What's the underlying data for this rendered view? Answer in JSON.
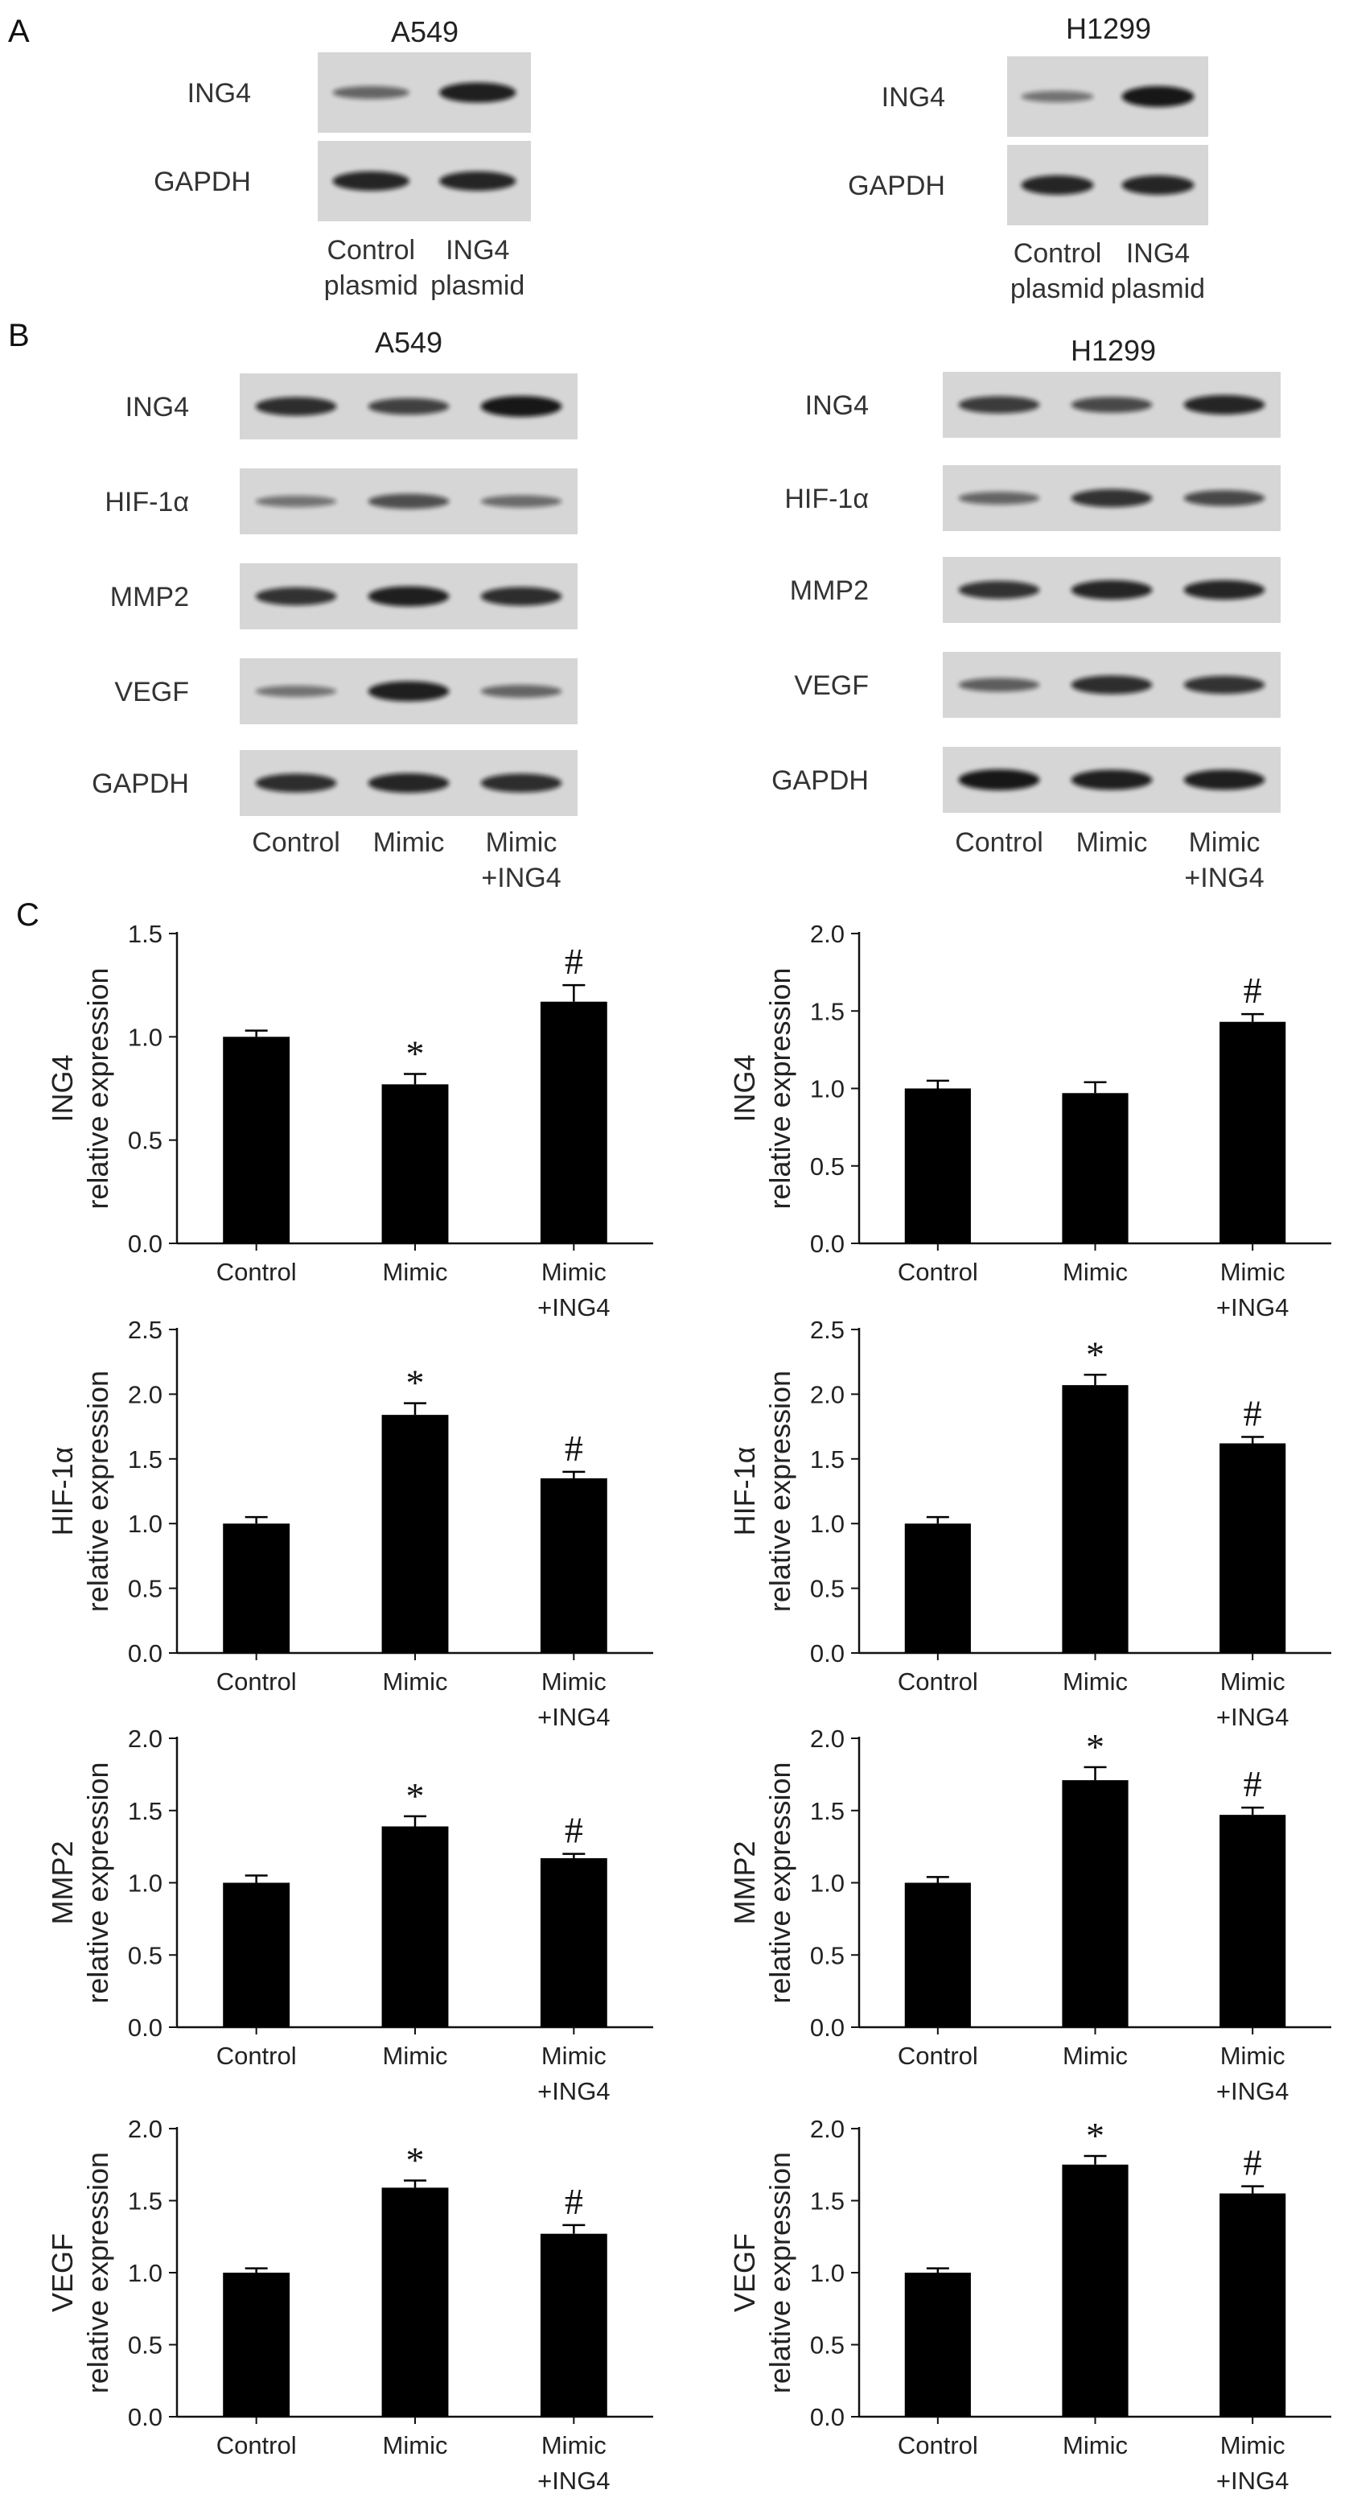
{
  "panels": {
    "a": "A",
    "b": "B",
    "c": "C"
  },
  "blots_a": [
    {
      "cell": "A549",
      "rows": [
        "ING4",
        "GAPDH"
      ],
      "lanes": [
        [
          "Control",
          "plasmid"
        ],
        [
          "ING4",
          "plasmid"
        ]
      ],
      "bands": [
        [
          0.45,
          0.95
        ],
        [
          0.9,
          0.9
        ]
      ]
    },
    {
      "cell": "H1299",
      "rows": [
        "ING4",
        "GAPDH"
      ],
      "lanes": [
        [
          "Control",
          "plasmid"
        ],
        [
          "ING4",
          "plasmid"
        ]
      ],
      "bands": [
        [
          0.35,
          1.0
        ],
        [
          0.9,
          0.9
        ]
      ]
    }
  ],
  "blots_b": [
    {
      "cell": "A549",
      "rows": [
        "ING4",
        "HIF-1α",
        "MMP2",
        "VEGF",
        "GAPDH"
      ],
      "lanes": [
        [
          "Control"
        ],
        [
          "Mimic"
        ],
        [
          "Mimic",
          "+ING4"
        ]
      ],
      "bands": [
        [
          0.85,
          0.7,
          1.0
        ],
        [
          0.35,
          0.6,
          0.4
        ],
        [
          0.8,
          0.95,
          0.85
        ],
        [
          0.35,
          0.95,
          0.45
        ],
        [
          0.85,
          0.9,
          0.85
        ]
      ]
    },
    {
      "cell": "H1299",
      "rows": [
        "ING4",
        "HIF-1α",
        "MMP2",
        "VEGF",
        "GAPDH"
      ],
      "lanes": [
        [
          "Control"
        ],
        [
          "Mimic"
        ],
        [
          "Mimic",
          "+ING4"
        ]
      ],
      "bands": [
        [
          0.75,
          0.65,
          0.9
        ],
        [
          0.45,
          0.8,
          0.65
        ],
        [
          0.8,
          0.9,
          0.9
        ],
        [
          0.5,
          0.85,
          0.8
        ],
        [
          1.0,
          0.95,
          0.95
        ]
      ]
    }
  ],
  "chart_data": [
    {
      "type": "bar",
      "ylabel": [
        "ING4",
        "relative expression"
      ],
      "categories": [
        [
          "Control"
        ],
        [
          "Mimic"
        ],
        [
          "Mimic",
          "+ING4"
        ]
      ],
      "values": [
        1.0,
        0.77,
        1.17
      ],
      "errors": [
        0.03,
        0.05,
        0.08
      ],
      "marks": [
        "",
        "*",
        "#"
      ],
      "ylim": [
        0,
        1.5
      ],
      "yticks": [
        "0.0",
        "0.5",
        "1.0",
        "1.5"
      ]
    },
    {
      "type": "bar",
      "ylabel": [
        "ING4",
        "relative expression"
      ],
      "categories": [
        [
          "Control"
        ],
        [
          "Mimic"
        ],
        [
          "Mimic",
          "+ING4"
        ]
      ],
      "values": [
        1.0,
        0.97,
        1.43
      ],
      "errors": [
        0.05,
        0.07,
        0.05
      ],
      "marks": [
        "",
        "",
        "#"
      ],
      "ylim": [
        0,
        2.0
      ],
      "yticks": [
        "0.0",
        "0.5",
        "1.0",
        "1.5",
        "2.0"
      ]
    },
    {
      "type": "bar",
      "ylabel": [
        "HIF-1α",
        "relative expression"
      ],
      "categories": [
        [
          "Control"
        ],
        [
          "Mimic"
        ],
        [
          "Mimic",
          "+ING4"
        ]
      ],
      "values": [
        1.0,
        1.84,
        1.35
      ],
      "errors": [
        0.05,
        0.09,
        0.05
      ],
      "marks": [
        "",
        "*",
        "#"
      ],
      "ylim": [
        0,
        2.5
      ],
      "yticks": [
        "0.0",
        "0.5",
        "1.0",
        "1.5",
        "2.0",
        "2.5"
      ]
    },
    {
      "type": "bar",
      "ylabel": [
        "HIF-1α",
        "relative expression"
      ],
      "categories": [
        [
          "Control"
        ],
        [
          "Mimic"
        ],
        [
          "Mimic",
          "+ING4"
        ]
      ],
      "values": [
        1.0,
        2.07,
        1.62
      ],
      "errors": [
        0.05,
        0.08,
        0.05
      ],
      "marks": [
        "",
        "*",
        "#"
      ],
      "ylim": [
        0,
        2.5
      ],
      "yticks": [
        "0.0",
        "0.5",
        "1.0",
        "1.5",
        "2.0",
        "2.5"
      ]
    },
    {
      "type": "bar",
      "ylabel": [
        "MMP2",
        "relative expression"
      ],
      "categories": [
        [
          "Control"
        ],
        [
          "Mimic"
        ],
        [
          "Mimic",
          "+ING4"
        ]
      ],
      "values": [
        1.0,
        1.39,
        1.17
      ],
      "errors": [
        0.05,
        0.07,
        0.03
      ],
      "marks": [
        "",
        "*",
        "#"
      ],
      "ylim": [
        0,
        2.0
      ],
      "yticks": [
        "0.0",
        "0.5",
        "1.0",
        "1.5",
        "2.0"
      ]
    },
    {
      "type": "bar",
      "ylabel": [
        "MMP2",
        "relative expression"
      ],
      "categories": [
        [
          "Control"
        ],
        [
          "Mimic"
        ],
        [
          "Mimic",
          "+ING4"
        ]
      ],
      "values": [
        1.0,
        1.71,
        1.47
      ],
      "errors": [
        0.04,
        0.09,
        0.05
      ],
      "marks": [
        "",
        "*",
        "#"
      ],
      "ylim": [
        0,
        2.0
      ],
      "yticks": [
        "0.0",
        "0.5",
        "1.0",
        "1.5",
        "2.0"
      ]
    },
    {
      "type": "bar",
      "ylabel": [
        "VEGF",
        "relative expression"
      ],
      "categories": [
        [
          "Control"
        ],
        [
          "Mimic"
        ],
        [
          "Mimic",
          "+ING4"
        ]
      ],
      "values": [
        1.0,
        1.59,
        1.27
      ],
      "errors": [
        0.03,
        0.05,
        0.06
      ],
      "marks": [
        "",
        "*",
        "#"
      ],
      "ylim": [
        0,
        2.0
      ],
      "yticks": [
        "0.0",
        "0.5",
        "1.0",
        "1.5",
        "2.0"
      ]
    },
    {
      "type": "bar",
      "ylabel": [
        "VEGF",
        "relative expression"
      ],
      "categories": [
        [
          "Control"
        ],
        [
          "Mimic"
        ],
        [
          "Mimic",
          "+ING4"
        ]
      ],
      "values": [
        1.0,
        1.75,
        1.55
      ],
      "errors": [
        0.03,
        0.06,
        0.05
      ],
      "marks": [
        "",
        "*",
        "#"
      ],
      "ylim": [
        0,
        2.0
      ],
      "yticks": [
        "0.0",
        "0.5",
        "1.0",
        "1.5",
        "2.0"
      ]
    }
  ]
}
